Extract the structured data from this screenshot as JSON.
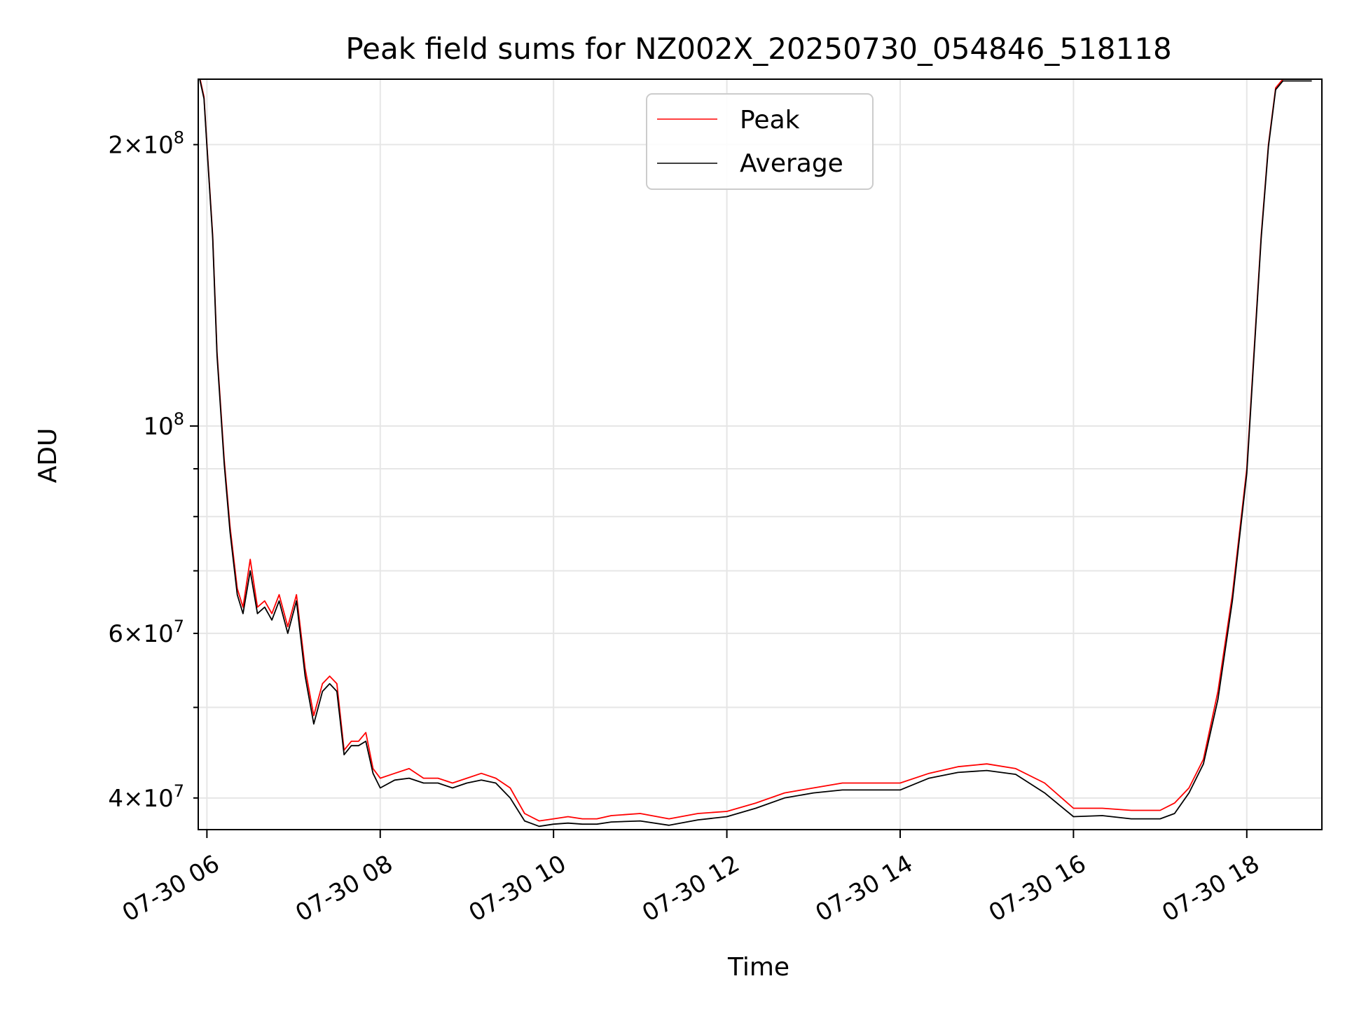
{
  "chart_data": {
    "type": "line",
    "title": "Peak field sums for NZ002X_20250730_054846_518118",
    "xlabel": "Time",
    "ylabel": "ADU",
    "yscale": "log",
    "grid": true,
    "legend_position": "top-center",
    "xlim": [
      "2025-07-30 05:54",
      "2025-07-30 18:52"
    ],
    "ylim": [
      37000000,
      235000000
    ],
    "x_ticks": [
      {
        "value": "2025-07-30 06:00",
        "label": "07-30 06"
      },
      {
        "value": "2025-07-30 08:00",
        "label": "07-30 08"
      },
      {
        "value": "2025-07-30 10:00",
        "label": "07-30 10"
      },
      {
        "value": "2025-07-30 12:00",
        "label": "07-30 12"
      },
      {
        "value": "2025-07-30 14:00",
        "label": "07-30 14"
      },
      {
        "value": "2025-07-30 16:00",
        "label": "07-30 16"
      },
      {
        "value": "2025-07-30 18:00",
        "label": "07-30 18"
      }
    ],
    "y_major_ticks": [
      {
        "value": 100000000,
        "mantissa": "",
        "base": "10",
        "exp": "8"
      }
    ],
    "y_minor_labeled_ticks": [
      {
        "value": 40000000,
        "mantissa": "4",
        "base": "10",
        "exp": "7"
      },
      {
        "value": 60000000,
        "mantissa": "6",
        "base": "10",
        "exp": "7"
      },
      {
        "value": 200000000,
        "mantissa": "2",
        "base": "10",
        "exp": "8"
      }
    ],
    "y_minor_ticks": [
      50000000,
      70000000,
      80000000,
      90000000
    ],
    "series": [
      {
        "name": "Peak",
        "color": "#ff0000",
        "x": [
          "2025-07-30 05:55",
          "2025-07-30 05:58",
          "2025-07-30 06:00",
          "2025-07-30 06:04",
          "2025-07-30 06:07",
          "2025-07-30 06:12",
          "2025-07-30 06:16",
          "2025-07-30 06:21",
          "2025-07-30 06:25",
          "2025-07-30 06:30",
          "2025-07-30 06:35",
          "2025-07-30 06:40",
          "2025-07-30 06:45",
          "2025-07-30 06:50",
          "2025-07-30 06:56",
          "2025-07-30 07:02",
          "2025-07-30 07:08",
          "2025-07-30 07:14",
          "2025-07-30 07:20",
          "2025-07-30 07:25",
          "2025-07-30 07:30",
          "2025-07-30 07:35",
          "2025-07-30 07:40",
          "2025-07-30 07:45",
          "2025-07-30 07:50",
          "2025-07-30 07:55",
          "2025-07-30 08:00",
          "2025-07-30 08:10",
          "2025-07-30 08:20",
          "2025-07-30 08:30",
          "2025-07-30 08:40",
          "2025-07-30 08:50",
          "2025-07-30 09:00",
          "2025-07-30 09:10",
          "2025-07-30 09:20",
          "2025-07-30 09:30",
          "2025-07-30 09:40",
          "2025-07-30 09:50",
          "2025-07-30 10:00",
          "2025-07-30 10:10",
          "2025-07-30 10:20",
          "2025-07-30 10:30",
          "2025-07-30 10:40",
          "2025-07-30 11:00",
          "2025-07-30 11:20",
          "2025-07-30 11:40",
          "2025-07-30 12:00",
          "2025-07-30 12:20",
          "2025-07-30 12:40",
          "2025-07-30 13:00",
          "2025-07-30 13:20",
          "2025-07-30 13:40",
          "2025-07-30 14:00",
          "2025-07-30 14:20",
          "2025-07-30 14:40",
          "2025-07-30 15:00",
          "2025-07-30 15:20",
          "2025-07-30 15:40",
          "2025-07-30 16:00",
          "2025-07-30 16:20",
          "2025-07-30 16:40",
          "2025-07-30 16:50",
          "2025-07-30 17:00",
          "2025-07-30 17:10",
          "2025-07-30 17:20",
          "2025-07-30 17:30",
          "2025-07-30 17:40",
          "2025-07-30 17:50",
          "2025-07-30 18:00",
          "2025-07-30 18:05",
          "2025-07-30 18:10",
          "2025-07-30 18:15",
          "2025-07-30 18:20",
          "2025-07-30 18:25",
          "2025-07-30 18:30",
          "2025-07-30 18:35",
          "2025-07-30 18:40",
          "2025-07-30 18:45"
        ],
        "values": [
          236000000,
          225000000,
          200000000,
          160000000,
          120000000,
          92000000,
          78000000,
          67000000,
          64000000,
          72000000,
          64000000,
          65000000,
          63000000,
          66000000,
          61000000,
          66000000,
          55000000,
          49000000,
          53000000,
          54000000,
          53000000,
          45000000,
          46000000,
          46000000,
          47000000,
          43000000,
          42000000,
          42500000,
          43000000,
          42000000,
          42000000,
          41500000,
          42000000,
          42500000,
          42000000,
          41000000,
          38500000,
          37800000,
          38000000,
          38200000,
          38000000,
          38000000,
          38300000,
          38500000,
          38000000,
          38500000,
          38700000,
          39500000,
          40500000,
          41000000,
          41500000,
          41500000,
          41500000,
          42500000,
          43200000,
          43500000,
          43000000,
          41500000,
          39000000,
          39000000,
          38800000,
          38800000,
          38800000,
          39500000,
          41000000,
          44000000,
          52000000,
          66000000,
          90000000,
          120000000,
          160000000,
          200000000,
          230000000,
          235000000,
          235000000,
          235000000,
          235000000,
          235000000
        ]
      },
      {
        "name": "Average",
        "color": "#000000",
        "x": [
          "2025-07-30 05:55",
          "2025-07-30 05:58",
          "2025-07-30 06:00",
          "2025-07-30 06:04",
          "2025-07-30 06:07",
          "2025-07-30 06:12",
          "2025-07-30 06:16",
          "2025-07-30 06:21",
          "2025-07-30 06:25",
          "2025-07-30 06:30",
          "2025-07-30 06:35",
          "2025-07-30 06:40",
          "2025-07-30 06:45",
          "2025-07-30 06:50",
          "2025-07-30 06:56",
          "2025-07-30 07:02",
          "2025-07-30 07:08",
          "2025-07-30 07:14",
          "2025-07-30 07:20",
          "2025-07-30 07:25",
          "2025-07-30 07:30",
          "2025-07-30 07:35",
          "2025-07-30 07:40",
          "2025-07-30 07:45",
          "2025-07-30 07:50",
          "2025-07-30 07:55",
          "2025-07-30 08:00",
          "2025-07-30 08:10",
          "2025-07-30 08:20",
          "2025-07-30 08:30",
          "2025-07-30 08:40",
          "2025-07-30 08:50",
          "2025-07-30 09:00",
          "2025-07-30 09:10",
          "2025-07-30 09:20",
          "2025-07-30 09:30",
          "2025-07-30 09:40",
          "2025-07-30 09:50",
          "2025-07-30 10:00",
          "2025-07-30 10:10",
          "2025-07-30 10:20",
          "2025-07-30 10:30",
          "2025-07-30 10:40",
          "2025-07-30 11:00",
          "2025-07-30 11:20",
          "2025-07-30 11:40",
          "2025-07-30 12:00",
          "2025-07-30 12:20",
          "2025-07-30 12:40",
          "2025-07-30 13:00",
          "2025-07-30 13:20",
          "2025-07-30 13:40",
          "2025-07-30 14:00",
          "2025-07-30 14:20",
          "2025-07-30 14:40",
          "2025-07-30 15:00",
          "2025-07-30 15:20",
          "2025-07-30 15:40",
          "2025-07-30 16:00",
          "2025-07-30 16:20",
          "2025-07-30 16:40",
          "2025-07-30 16:50",
          "2025-07-30 17:00",
          "2025-07-30 17:10",
          "2025-07-30 17:20",
          "2025-07-30 17:30",
          "2025-07-30 17:40",
          "2025-07-30 17:50",
          "2025-07-30 18:00",
          "2025-07-30 18:05",
          "2025-07-30 18:10",
          "2025-07-30 18:15",
          "2025-07-30 18:20",
          "2025-07-30 18:25",
          "2025-07-30 18:30",
          "2025-07-30 18:35",
          "2025-07-30 18:40",
          "2025-07-30 18:45"
        ],
        "values": [
          235000000,
          224000000,
          199000000,
          159000000,
          119000000,
          91000000,
          77000000,
          66000000,
          63000000,
          70000000,
          63000000,
          64000000,
          62000000,
          65000000,
          60000000,
          65000000,
          54000000,
          48000000,
          52000000,
          53000000,
          52000000,
          44500000,
          45500000,
          45500000,
          46000000,
          42500000,
          41000000,
          41800000,
          42000000,
          41500000,
          41500000,
          41000000,
          41500000,
          41800000,
          41500000,
          40000000,
          37800000,
          37300000,
          37500000,
          37600000,
          37500000,
          37500000,
          37700000,
          37800000,
          37400000,
          37900000,
          38200000,
          39000000,
          40000000,
          40500000,
          40800000,
          40800000,
          40800000,
          42000000,
          42600000,
          42800000,
          42400000,
          40500000,
          38200000,
          38300000,
          38000000,
          38000000,
          38000000,
          38500000,
          40500000,
          43500000,
          51000000,
          65000000,
          89000000,
          119000000,
          159000000,
          199000000,
          229000000,
          234000000,
          234000000,
          234000000,
          234000000,
          234000000
        ]
      }
    ]
  }
}
